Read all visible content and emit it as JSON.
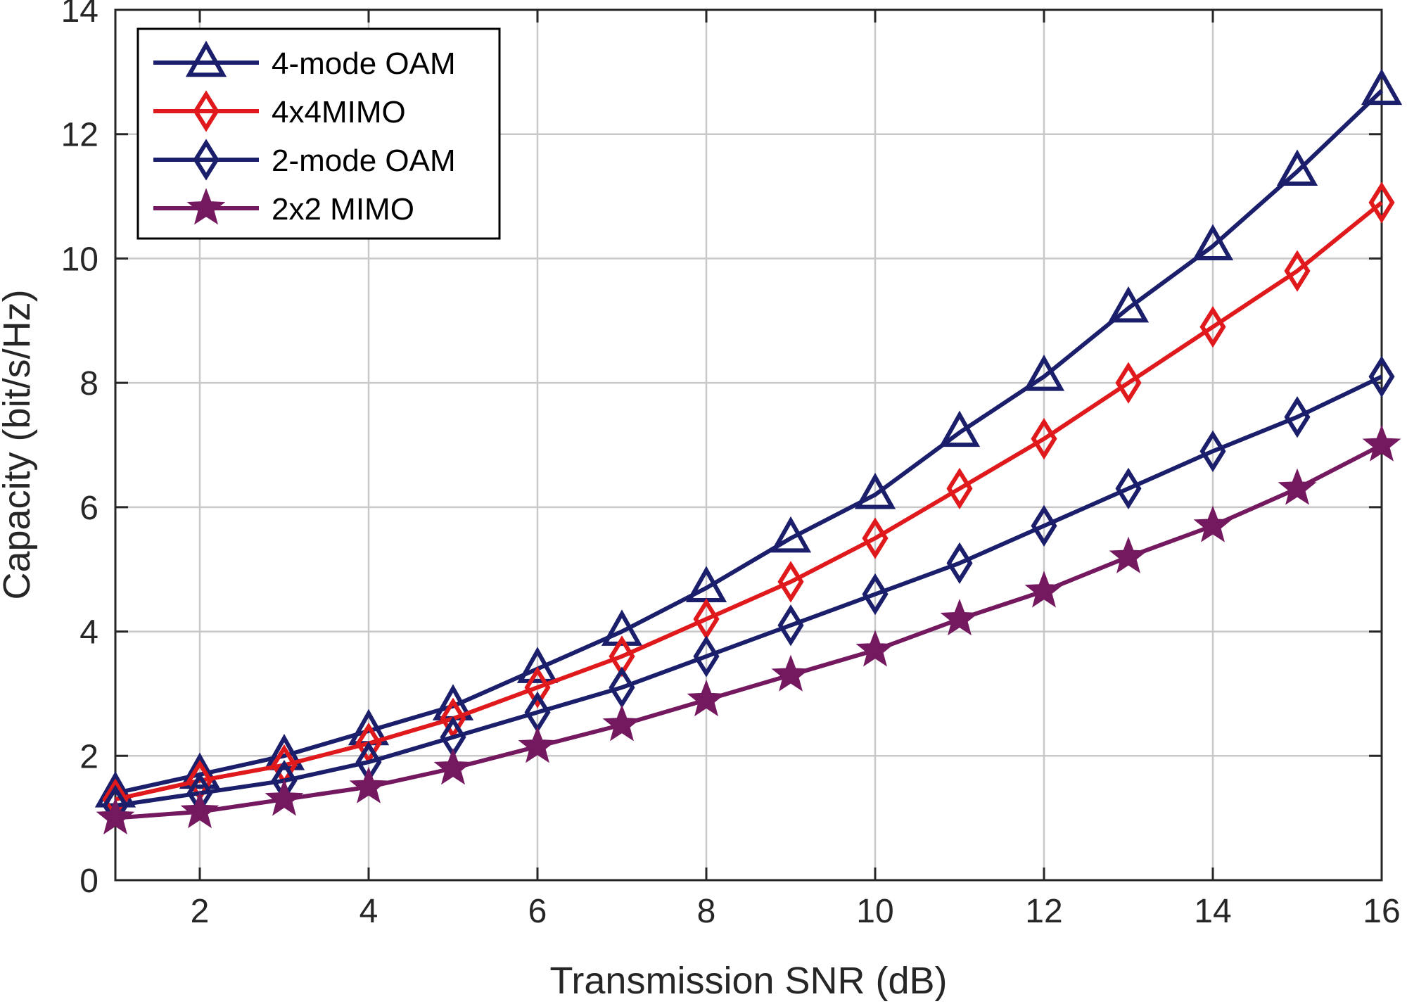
{
  "chart_data": {
    "type": "line",
    "title": "",
    "xlabel": "Transmission SNR (dB)",
    "ylabel": "Capacity (bit/s/Hz)",
    "xlim": [
      1,
      16
    ],
    "ylim": [
      0,
      14
    ],
    "xticks": [
      2,
      4,
      6,
      8,
      10,
      12,
      14,
      16
    ],
    "yticks": [
      0,
      2,
      4,
      6,
      8,
      10,
      12,
      14
    ],
    "grid": true,
    "legend_position": "top-left",
    "x": [
      1,
      2,
      3,
      4,
      5,
      6,
      7,
      8,
      9,
      10,
      11,
      12,
      13,
      14,
      15,
      16
    ],
    "series": [
      {
        "name": "4-mode OAM",
        "marker": "triangle",
        "color": "#1b1f6b",
        "values": [
          1.4,
          1.7,
          2.0,
          2.4,
          2.8,
          3.4,
          4.0,
          4.7,
          5.5,
          6.2,
          7.2,
          8.1,
          9.2,
          10.2,
          11.4,
          12.7
        ]
      },
      {
        "name": "4x4MIMO",
        "marker": "diamond",
        "color": "#e0191c",
        "values": [
          1.3,
          1.6,
          1.85,
          2.2,
          2.6,
          3.1,
          3.6,
          4.2,
          4.8,
          5.5,
          6.3,
          7.1,
          8.0,
          8.9,
          9.8,
          10.9
        ]
      },
      {
        "name": "2-mode OAM",
        "marker": "diamond",
        "color": "#1b1f6b",
        "values": [
          1.2,
          1.4,
          1.6,
          1.9,
          2.3,
          2.7,
          3.1,
          3.6,
          4.1,
          4.6,
          5.1,
          5.7,
          6.3,
          6.9,
          7.45,
          8.1
        ]
      },
      {
        "name": "2x2 MIMO",
        "marker": "star",
        "color": "#74195f",
        "values": [
          1.0,
          1.1,
          1.3,
          1.5,
          1.8,
          2.15,
          2.5,
          2.9,
          3.3,
          3.7,
          4.2,
          4.65,
          5.2,
          5.7,
          6.3,
          7.0
        ]
      }
    ]
  }
}
